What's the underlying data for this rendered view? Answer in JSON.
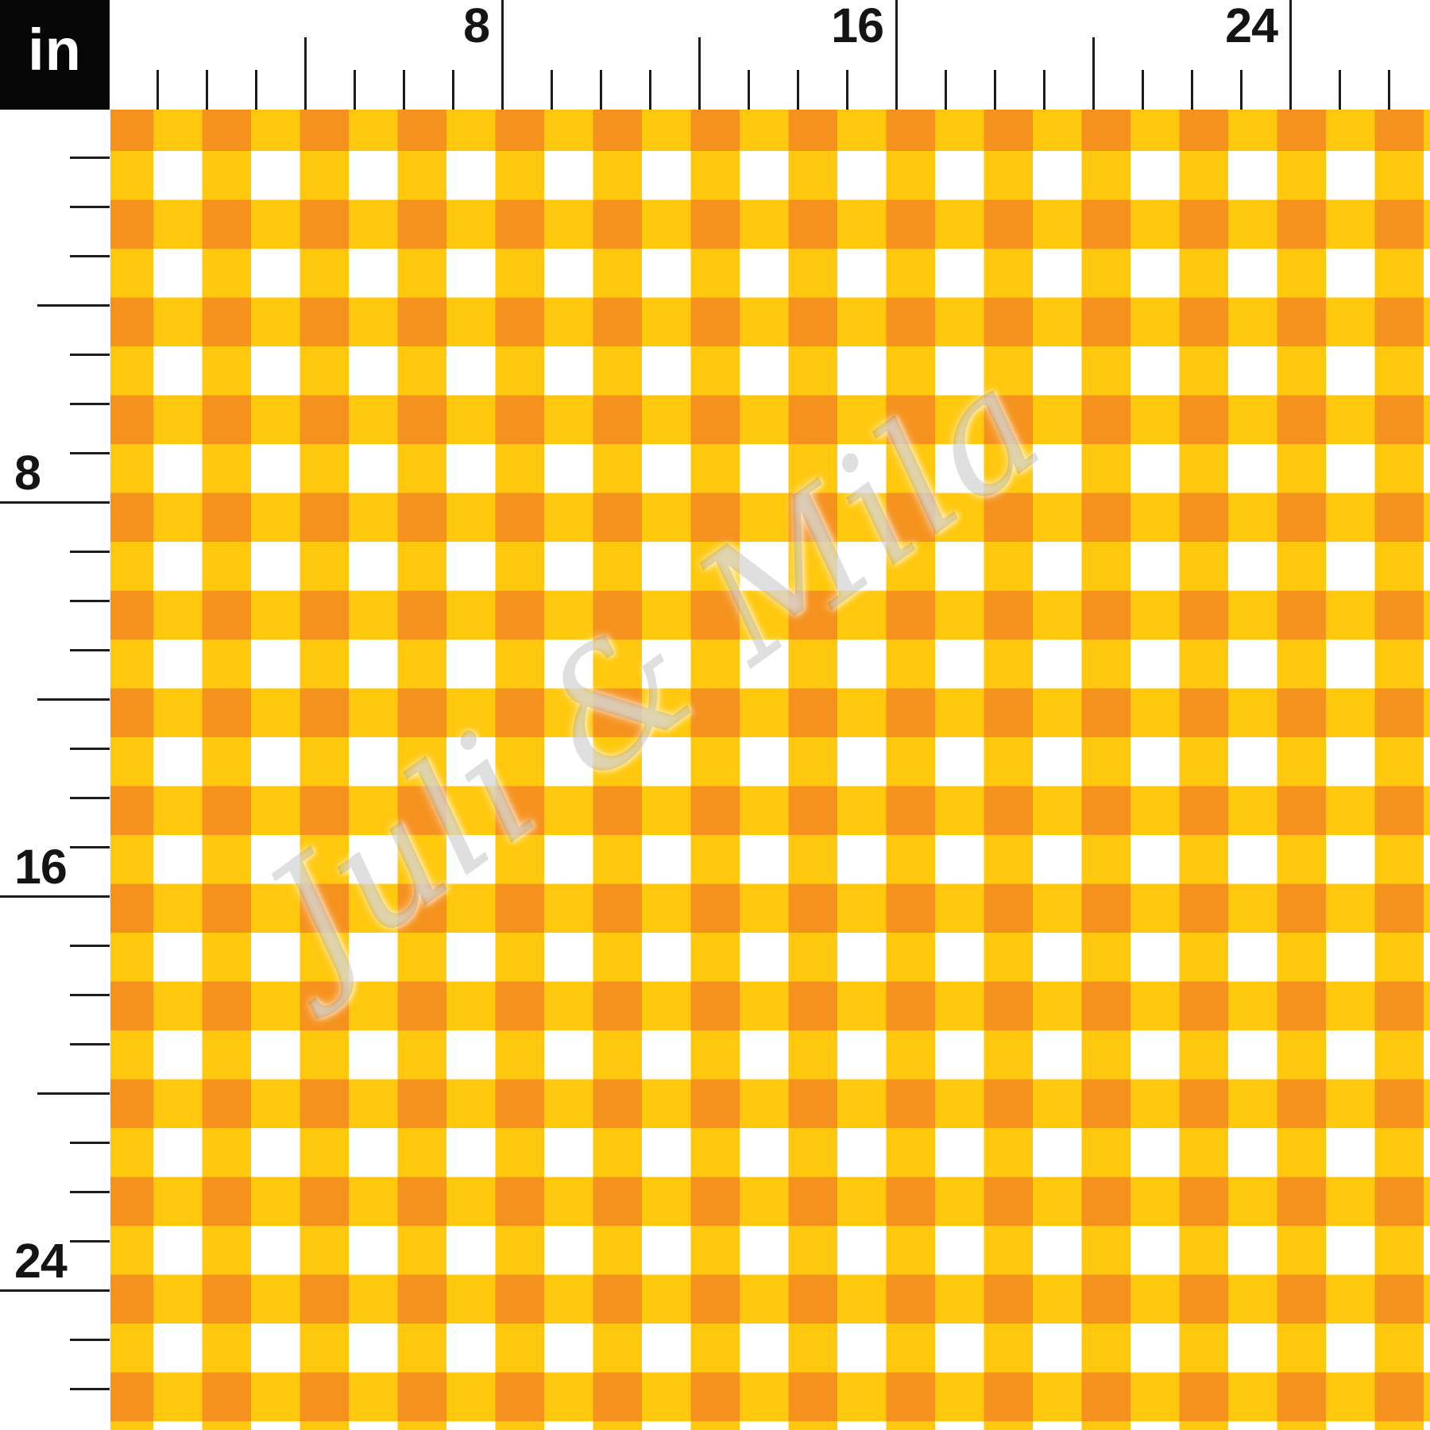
{
  "unit_box": {
    "label": "in"
  },
  "rulers": {
    "unit": "inches",
    "top": {
      "labels": [
        {
          "text": "8",
          "inch": 8
        },
        {
          "text": "16",
          "inch": 16
        },
        {
          "text": "24",
          "inch": 24
        }
      ]
    },
    "left": {
      "labels": [
        {
          "text": "8",
          "inch": 8
        },
        {
          "text": "16",
          "inch": 16
        },
        {
          "text": "24",
          "inch": 24
        }
      ]
    }
  },
  "watermark": {
    "text": "Juli & Mila"
  },
  "pattern": {
    "name": "gingham-check",
    "colors": {
      "orange": "#F5921E",
      "yellow": "#FFC80D",
      "white": "#FFFFFF"
    },
    "check_size_in": 1
  }
}
